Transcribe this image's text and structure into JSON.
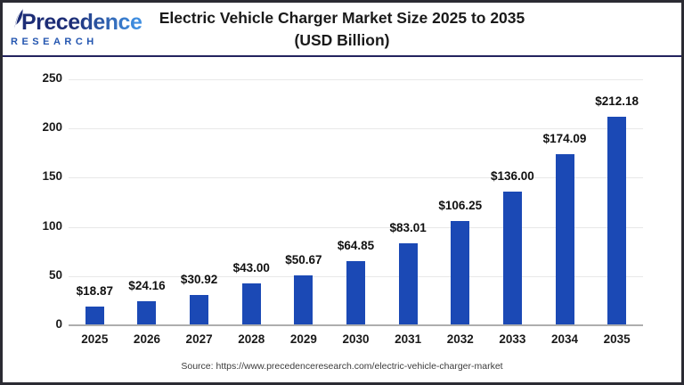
{
  "colors": {
    "bar": "#1b49b5",
    "title_text": "#1a1a1a",
    "grid_line": "#e8e8e8",
    "axis_line": "#aeaeae",
    "tick_text": "#1a1a1a",
    "value_label_text": "#111111",
    "frame_border": "#2b2b33",
    "header_separator": "#23235e",
    "logo_dark": "#1d2d76",
    "logo_light": "#3f8ee0",
    "logo_subtitle": "#2456b0",
    "source_text": "#3c3c3c",
    "background": "#ffffff"
  },
  "logo": {
    "name": "Precedence",
    "subtitle": "RESEARCH"
  },
  "header": {
    "title_line1": "Electric Vehicle Charger Market Size 2025 to 2035",
    "title_line2": "(USD Billion)"
  },
  "footer": {
    "source": "Source: https://www.precedenceresearch.com/electric-vehicle-charger-market"
  },
  "chart_data": {
    "type": "bar",
    "title": "Electric Vehicle Charger Market Size 2025 to 2035 (USD Billion)",
    "categories": [
      "2025",
      "2026",
      "2027",
      "2028",
      "2029",
      "2030",
      "2031",
      "2032",
      "2033",
      "2034",
      "2035"
    ],
    "values": [
      18.87,
      24.16,
      30.92,
      43.0,
      50.67,
      64.85,
      83.01,
      106.25,
      136.0,
      174.09,
      212.18
    ],
    "value_labels": [
      "$18.87",
      "$24.16",
      "$30.92",
      "$43.00",
      "$50.67",
      "$64.85",
      "$83.01",
      "$106.25",
      "$136.00",
      "$174.09",
      "$212.18"
    ],
    "unit": "USD Billion",
    "xlabel": "",
    "ylabel": "",
    "ylim": [
      0,
      250
    ],
    "yticks": [
      0,
      50,
      100,
      150,
      200,
      250
    ],
    "grid": "horizontal",
    "legend": "none",
    "bar_color": "#1b49b5"
  }
}
